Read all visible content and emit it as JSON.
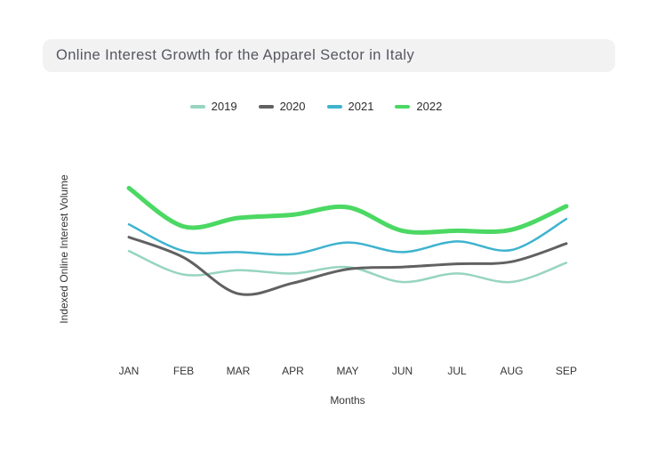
{
  "title": "Online Interest Growth for the Apparel Sector in Italy",
  "chart_data": {
    "type": "line",
    "title": "Online Interest Growth for the Apparel Sector in Italy",
    "xlabel": "Months",
    "ylabel": "Indexed Online Interest Volume",
    "categories": [
      "JAN",
      "FEB",
      "MAR",
      "APR",
      "MAY",
      "JUN",
      "JUL",
      "AUG",
      "SEP"
    ],
    "ylim": [
      0,
      100
    ],
    "grid": false,
    "legend_position": "top",
    "smooth_lines": true,
    "series": [
      {
        "name": "2019",
        "color": "#97d5bf",
        "line_width": 2.5,
        "values": [
          47,
          36,
          38,
          36.5,
          39.5,
          32.5,
          36.5,
          32.5,
          41.5
        ]
      },
      {
        "name": "2020",
        "color": "#616161",
        "line_width": 3,
        "values": [
          53.5,
          44,
          27,
          32,
          38.5,
          39.5,
          41,
          42,
          50.5
        ]
      },
      {
        "name": "2021",
        "color": "#3eb3ce",
        "line_width": 2.5,
        "values": [
          59.5,
          47,
          46.5,
          45.5,
          51,
          46.5,
          51.5,
          47.5,
          62
        ]
      },
      {
        "name": "2022",
        "color": "#4bd863",
        "line_width": 5,
        "values": [
          76.5,
          58.5,
          62.5,
          64,
          67.5,
          56.5,
          56.5,
          57,
          68
        ]
      }
    ]
  }
}
